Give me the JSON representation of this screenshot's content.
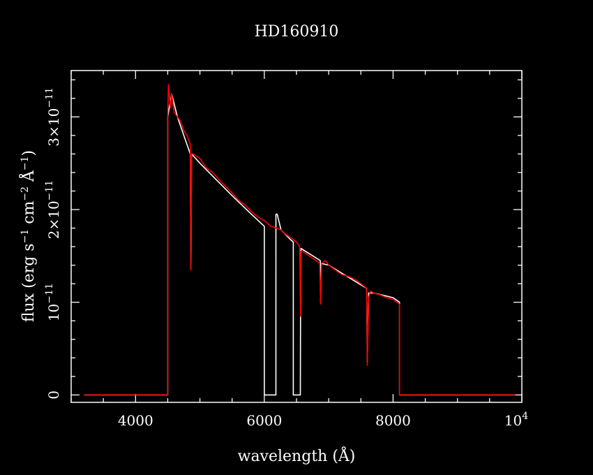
{
  "chart_data": {
    "type": "line",
    "title": "HD160910",
    "xlabel": "wavelength (Å)",
    "ylabel": {
      "p1": "flux (erg s",
      "sup1": "−1",
      "p2": " cm",
      "sup2": "−2",
      "p3": " Å",
      "sup3": "−1",
      "p4": ")"
    },
    "xlim": [
      3000,
      10000
    ],
    "ylim": [
      -8e-13,
      3.5e-11
    ],
    "x_ticks": [
      {
        "value": 4000,
        "label": "4000"
      },
      {
        "value": 6000,
        "label": "6000"
      },
      {
        "value": 8000,
        "label": "8000"
      }
    ],
    "x_tick_last": {
      "value": 10000,
      "base": "10",
      "exp": "4"
    },
    "y_ticks": [
      {
        "value": 0,
        "mantissa": "0",
        "exp": ""
      },
      {
        "value": 1e-11,
        "mantissa": "10",
        "exp": "−11"
      },
      {
        "value": 2e-11,
        "mantissa": "2×10",
        "exp": "−11"
      },
      {
        "value": 3e-11,
        "mantissa": "3×10",
        "exp": "−11"
      }
    ],
    "grid": false,
    "series": [
      {
        "color": "#ffffff",
        "x": [
          3200,
          4500,
          4500,
          4560,
          4650,
          4750,
          4850,
          4861,
          4870,
          5000,
          5500,
          5800,
          6000,
          6000,
          6180,
          6180,
          6200,
          6260,
          6400,
          6450,
          6450,
          6560,
          6563,
          6570,
          6870,
          6875,
          6880,
          7000,
          7590,
          7600,
          7620,
          7700,
          8000,
          8100,
          8100,
          9900
        ],
        "y": [
          0,
          0,
          3e-11,
          3.25e-11,
          3e-11,
          2.8e-11,
          2.6e-11,
          1.35e-11,
          2.6e-11,
          2.5e-11,
          2.15e-11,
          1.95e-11,
          1.82e-11,
          0,
          0,
          1.95e-11,
          1.95e-11,
          1.78e-11,
          1.68e-11,
          1.65e-11,
          0,
          0,
          9e-12,
          1.58e-11,
          1.45e-11,
          1e-11,
          1.42e-11,
          1.4e-11,
          1.15e-11,
          3.5e-12,
          1.1e-11,
          1.1e-11,
          1.05e-11,
          1e-11,
          0,
          0
        ]
      },
      {
        "color": "#ff0000",
        "x": [
          3200,
          4500,
          4500,
          4510,
          4540,
          4560,
          4600,
          4650,
          4700,
          4750,
          4800,
          4850,
          4861,
          4870,
          4900,
          5000,
          5100,
          5200,
          5300,
          5400,
          5500,
          5600,
          5700,
          5800,
          5900,
          6000,
          6100,
          6200,
          6260,
          6300,
          6400,
          6500,
          6550,
          6563,
          6570,
          6600,
          6700,
          6800,
          6860,
          6875,
          6890,
          6950,
          7000,
          7100,
          7200,
          7300,
          7400,
          7500,
          7590,
          7600,
          7620,
          7650,
          7700,
          7800,
          7900,
          8000,
          8100,
          8100,
          9900
        ],
        "y": [
          0,
          0,
          3e-11,
          3.35e-11,
          3.1e-11,
          3.25e-11,
          3.05e-11,
          3e-11,
          2.95e-11,
          2.85e-11,
          2.8e-11,
          2.7e-11,
          1.35e-11,
          2.6e-11,
          2.6e-11,
          2.55e-11,
          2.45e-11,
          2.4e-11,
          2.32e-11,
          2.25e-11,
          2.18e-11,
          2.1e-11,
          2.05e-11,
          1.98e-11,
          1.92e-11,
          1.88e-11,
          1.82e-11,
          1.8e-11,
          1.78e-11,
          1.75e-11,
          1.7e-11,
          1.65e-11,
          1.6e-11,
          8.5e-12,
          1.55e-11,
          1.55e-11,
          1.5e-11,
          1.45e-11,
          1.42e-11,
          9.8e-12,
          1.42e-11,
          1.45e-11,
          1.4e-11,
          1.35e-11,
          1.3e-11,
          1.28e-11,
          1.25e-11,
          1.2e-11,
          1.15e-11,
          3.2e-12,
          1.05e-11,
          1.12e-11,
          1.1e-11,
          1.08e-11,
          1.05e-11,
          1.03e-11,
          9.8e-12,
          0,
          0
        ]
      }
    ]
  }
}
